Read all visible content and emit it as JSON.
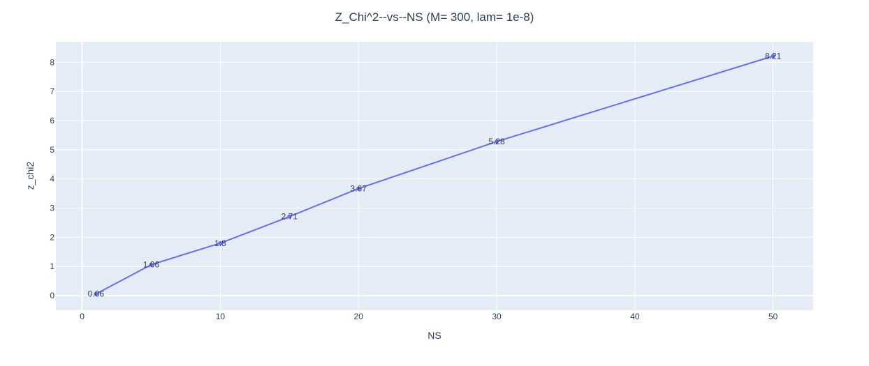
{
  "chart_data": {
    "type": "line",
    "title": "Z_Chi^2--vs--NS  (M= 300, lam= 1e-8)",
    "xlabel": "NS",
    "ylabel": "z_chi2",
    "x": [
      1,
      5,
      10,
      15,
      20,
      30,
      50
    ],
    "y": [
      0.06,
      1.06,
      1.8,
      2.71,
      3.67,
      5.28,
      8.21
    ],
    "data_labels": [
      "0.06",
      "1.06",
      "1.8",
      "2.71",
      "3.67",
      "5.28",
      "8.21"
    ],
    "xlim": [
      -1.9,
      52.9
    ],
    "ylim": [
      -0.5,
      8.7
    ],
    "xticks": [
      0,
      10,
      20,
      30,
      40,
      50
    ],
    "yticks": [
      0,
      1,
      2,
      3,
      4,
      5,
      6,
      7,
      8
    ],
    "grid": true,
    "legend": "none",
    "colors": {
      "line": "#636efa",
      "plot_bg": "#e5ecf6",
      "grid": "#ffffff",
      "text": "#2a3f5f"
    }
  }
}
